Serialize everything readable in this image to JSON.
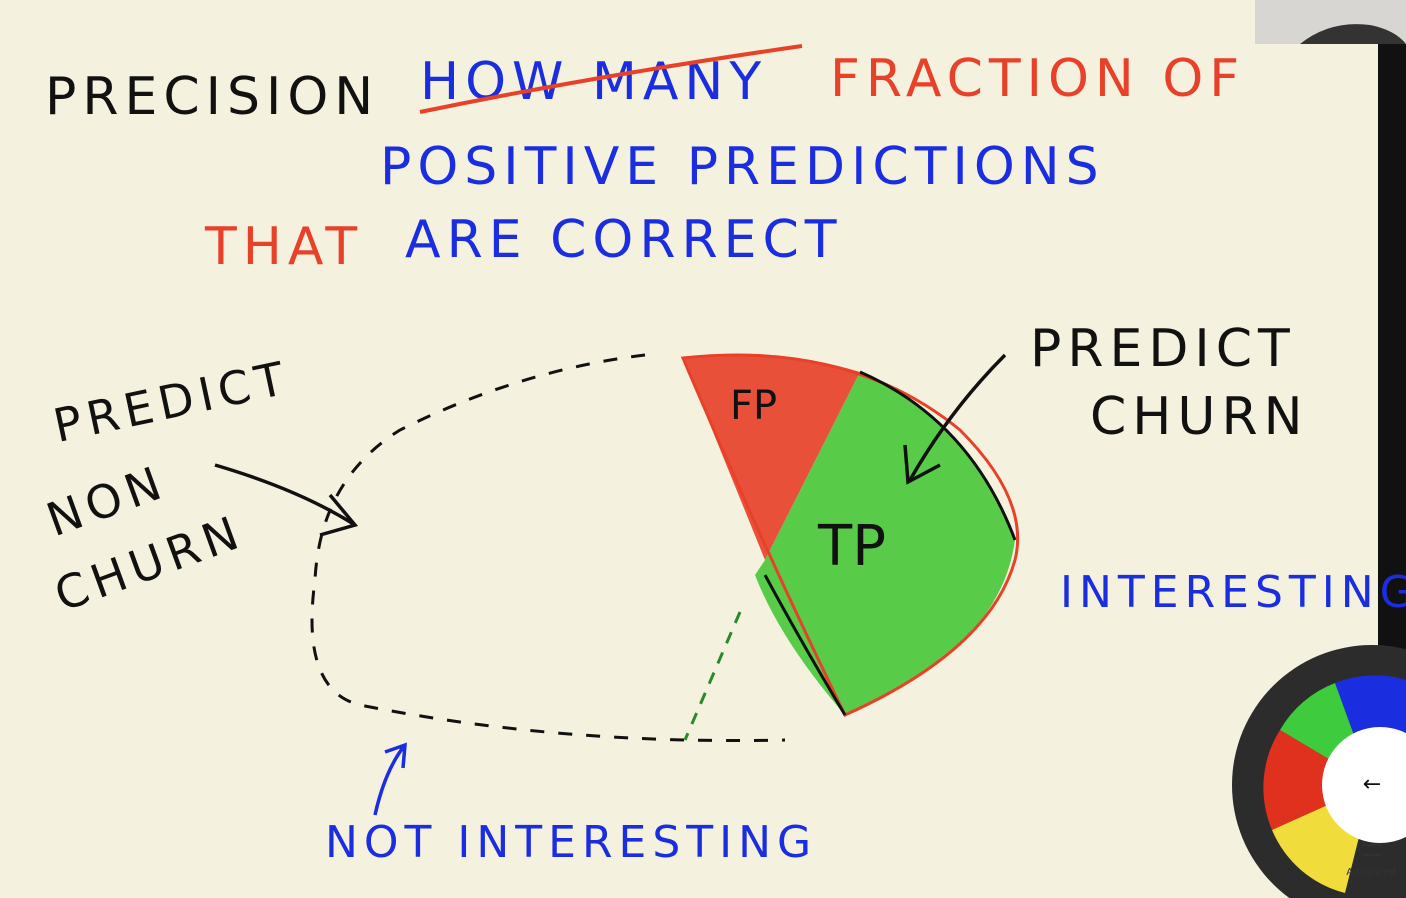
{
  "header": {
    "title": "PRECISION",
    "struck": "HOW MANY",
    "line1": "FRACTION OF",
    "line2": "POSITIVE PREDICTIONS",
    "line3_red": "THAT",
    "line3_blue": "ARE CORRECT"
  },
  "diagram": {
    "left_label": [
      "PREDICT",
      "NON",
      "CHURN"
    ],
    "right_label": [
      "PREDICT",
      "CHURN"
    ],
    "fp": "FP",
    "tp": "TP",
    "interesting": "INTERESTING",
    "not_interesting": "NOT INTERESTING"
  },
  "toolbar": {
    "back": "←",
    "advanced": "Advanced"
  }
}
